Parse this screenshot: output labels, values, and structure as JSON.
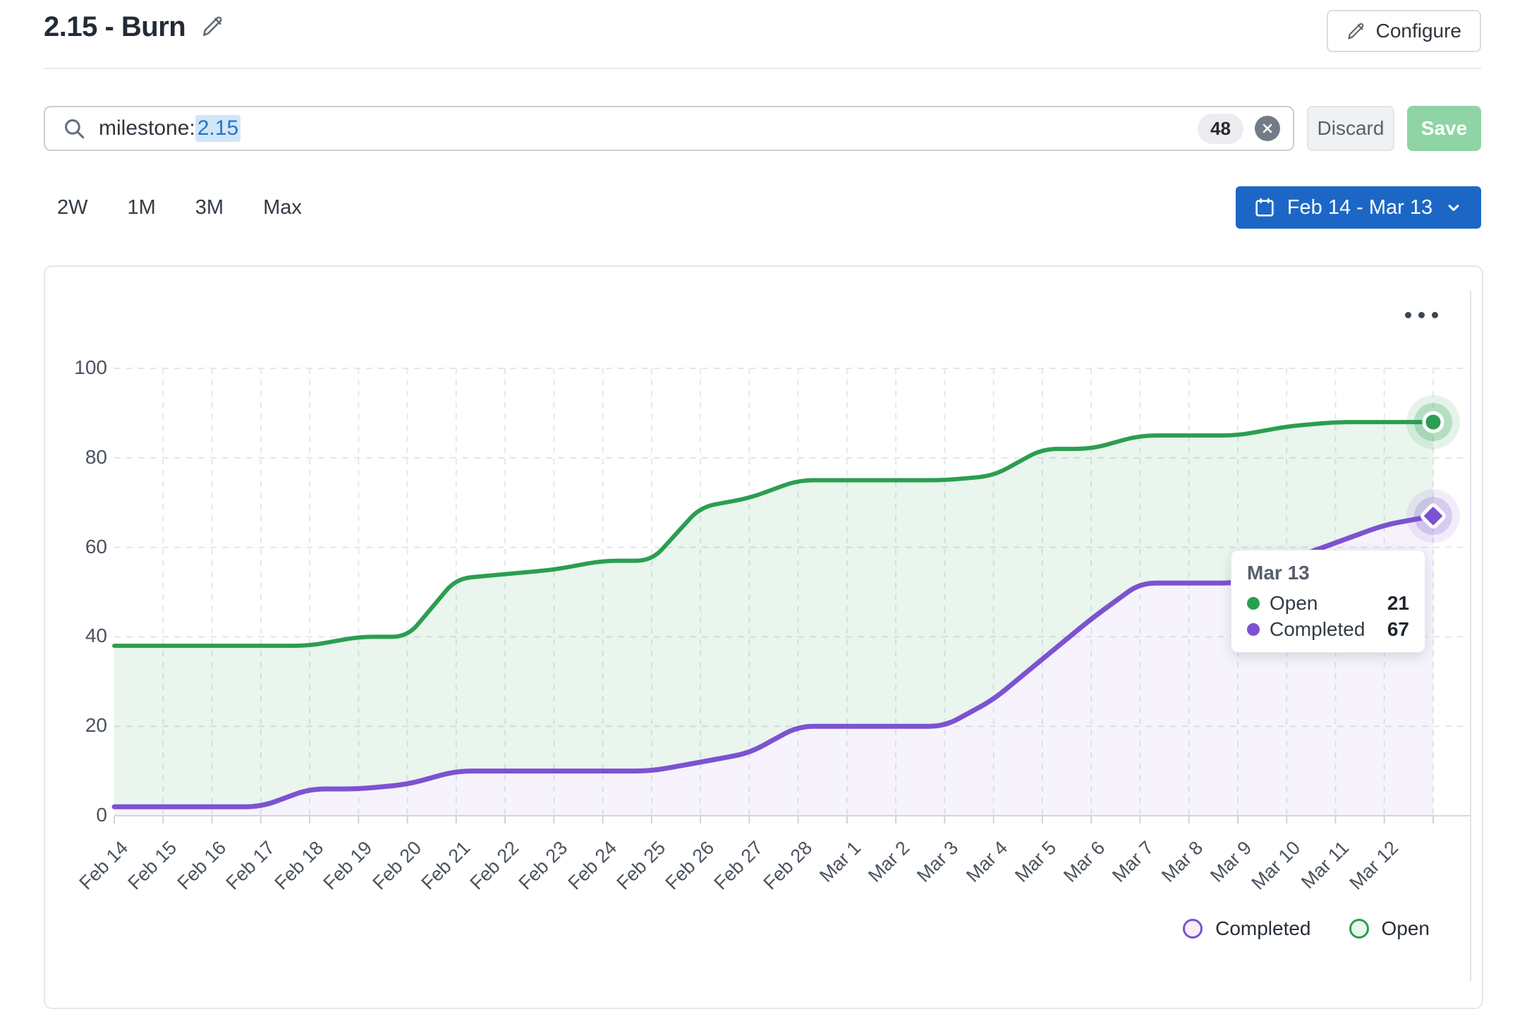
{
  "header": {
    "title": "2.15 - Burn",
    "configure_label": "Configure"
  },
  "filter_bar": {
    "search_token_key": "milestone:",
    "search_token_value": "2.15",
    "results_count": "48",
    "discard_label": "Discard",
    "save_label": "Save"
  },
  "time_ranges": [
    "2W",
    "1M",
    "3M",
    "Max"
  ],
  "date_range_label": "Feb 14 - Mar 13",
  "chart_data": {
    "type": "area",
    "stacked": true,
    "categories": [
      "Feb 14",
      "Feb 15",
      "Feb 16",
      "Feb 17",
      "Feb 18",
      "Feb 19",
      "Feb 20",
      "Feb 21",
      "Feb 22",
      "Feb 23",
      "Feb 24",
      "Feb 25",
      "Feb 26",
      "Feb 27",
      "Feb 28",
      "Mar 1",
      "Mar 2",
      "Mar 3",
      "Mar 4",
      "Mar 5",
      "Mar 6",
      "Mar 7",
      "Mar 8",
      "Mar 9",
      "Mar 10",
      "Mar 11",
      "Mar 12",
      "Mar 13"
    ],
    "series": [
      {
        "name": "Completed",
        "color": "#7c52d1",
        "fill": "rgba(124,82,209,0.07)",
        "values": [
          2,
          2,
          2,
          2,
          6,
          6,
          7,
          10,
          10,
          10,
          10,
          10,
          12,
          14,
          20,
          20,
          20,
          20,
          26,
          35,
          44,
          52,
          52,
          52,
          57,
          61,
          65,
          67
        ]
      },
      {
        "name": "Open",
        "color": "#2b9e50",
        "fill": "rgba(43,158,80,0.10)",
        "values": [
          36,
          36,
          36,
          36,
          32,
          34,
          33,
          43,
          44,
          45,
          47,
          47,
          57,
          57,
          55,
          55,
          55,
          55,
          50,
          47,
          38,
          33,
          33,
          33,
          30,
          27,
          23,
          21
        ]
      }
    ],
    "ylim": [
      0,
      100
    ],
    "y_ticks": [
      0,
      20,
      40,
      60,
      80,
      100
    ],
    "x_tick_labels": [
      "Feb 14",
      "Feb 15",
      "Feb 16",
      "Feb 17",
      "Feb 18",
      "Feb 19",
      "Feb 20",
      "Feb 21",
      "Feb 22",
      "Feb 23",
      "Feb 24",
      "Feb 25",
      "Feb 26",
      "Feb 27",
      "Feb 28",
      "Mar 1",
      "Mar 2",
      "Mar 3",
      "Mar 4",
      "Mar 5",
      "Mar 6",
      "Mar 7",
      "Mar 8",
      "Mar 9",
      "Mar 10",
      "Mar 11",
      "Mar 12"
    ],
    "grid": "dashed",
    "legend_position": "bottom-right",
    "note": "stacked burnup: green Open line is drawn at Completed + Open; purple line is Completed"
  },
  "tooltip": {
    "title": "Mar 13",
    "rows": [
      {
        "label": "Open",
        "value": "21",
        "color": "#2b9e50"
      },
      {
        "label": "Completed",
        "value": "67",
        "color": "#7c52d1"
      }
    ]
  },
  "legend": {
    "items": [
      {
        "label": "Completed",
        "color": "#7c52d1",
        "tint": "#f6effb"
      },
      {
        "label": "Open",
        "color": "#2b9e50",
        "tint": "#eaf6ef"
      }
    ]
  },
  "colors": {
    "accent_blue": "#1c67c6",
    "token_blue": "#1f75cb",
    "save_green": "#8fd4a4"
  }
}
